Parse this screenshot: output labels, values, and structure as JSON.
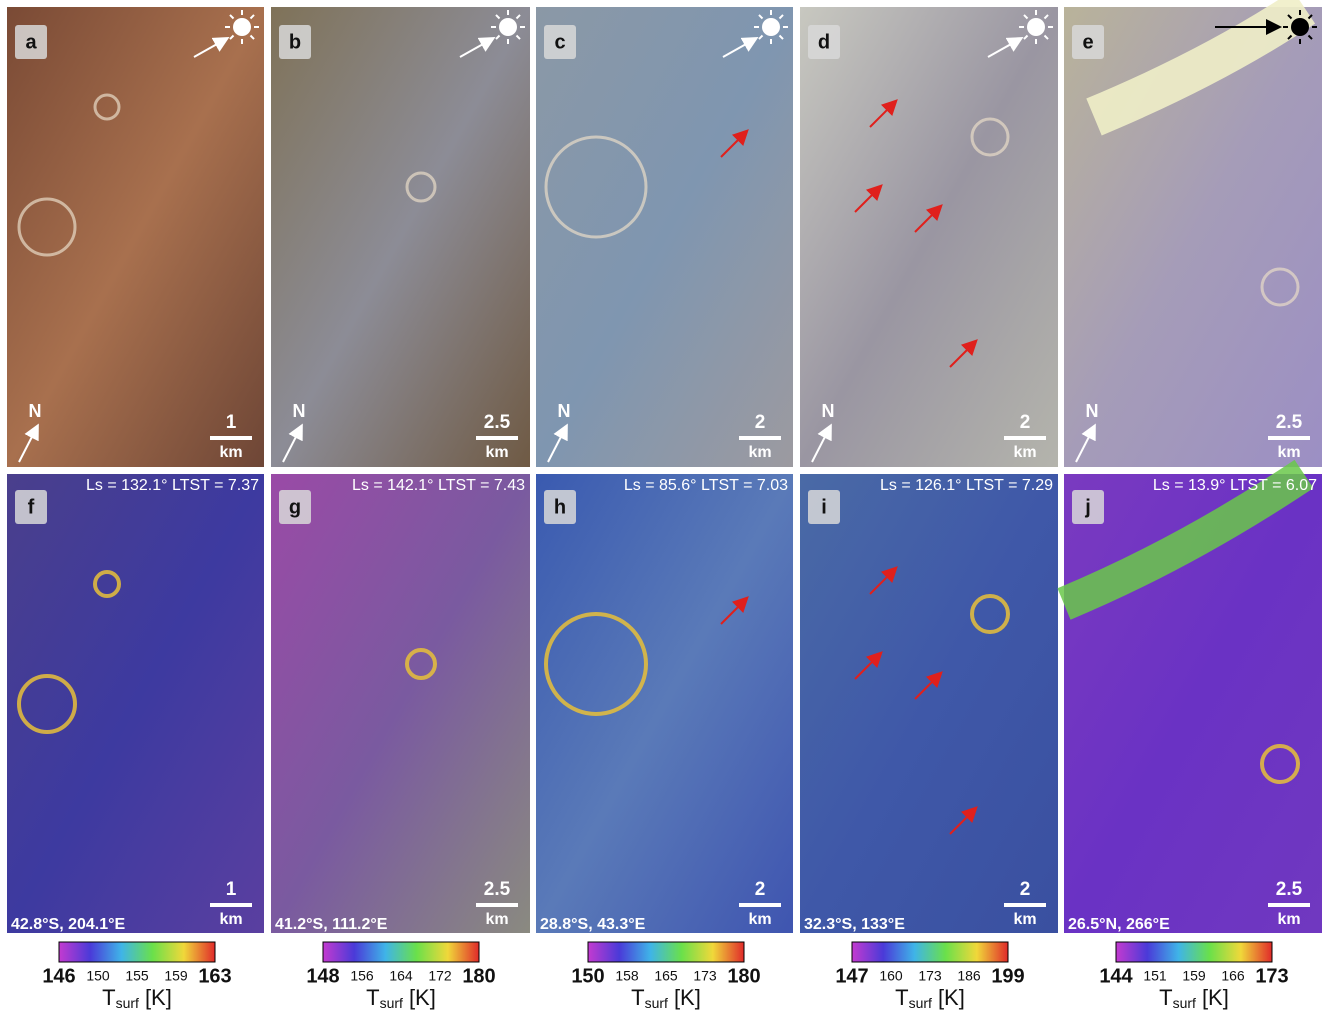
{
  "panels_top": [
    {
      "letter": "a",
      "north": "N",
      "scale": "1",
      "unit": "km"
    },
    {
      "letter": "b",
      "north": "N",
      "scale": "2.5",
      "unit": "km"
    },
    {
      "letter": "c",
      "north": "N",
      "scale": "2",
      "unit": "km"
    },
    {
      "letter": "d",
      "north": "N",
      "scale": "2",
      "unit": "km"
    },
    {
      "letter": "e",
      "north": "N",
      "scale": "2.5",
      "unit": "km"
    }
  ],
  "panels_bottom": [
    {
      "letter": "f",
      "conditions": "Ls = 132.1° LTST = 7.37",
      "location": "42.8°S, 204.1°E",
      "scale": "1",
      "unit": "km",
      "colorbar_ticks": [
        "146",
        "150",
        "155",
        "159",
        "163"
      ]
    },
    {
      "letter": "g",
      "conditions": "Ls = 142.1° LTST = 7.43",
      "location": "41.2°S, 111.2°E",
      "scale": "2.5",
      "unit": "km",
      "colorbar_ticks": [
        "148",
        "156",
        "164",
        "172",
        "180"
      ]
    },
    {
      "letter": "h",
      "conditions": "Ls = 85.6° LTST = 7.03",
      "location": "28.8°S, 43.3°E",
      "scale": "2",
      "unit": "km",
      "colorbar_ticks": [
        "150",
        "158",
        "165",
        "173",
        "180"
      ]
    },
    {
      "letter": "i",
      "conditions": "Ls = 126.1° LTST = 7.29",
      "location": "32.3°S, 133°E",
      "scale": "2",
      "unit": "km",
      "colorbar_ticks": [
        "147",
        "160",
        "173",
        "186",
        "199"
      ]
    },
    {
      "letter": "j",
      "conditions": "Ls = 13.9° LTST = 6.07",
      "location": "26.5°N, 266°E",
      "scale": "2.5",
      "unit": "km",
      "colorbar_ticks": [
        "144",
        "151",
        "159",
        "166",
        "173"
      ]
    }
  ],
  "colorbar_label": {
    "symbol": "T",
    "subscript": "surf",
    "unit": "[K]"
  }
}
